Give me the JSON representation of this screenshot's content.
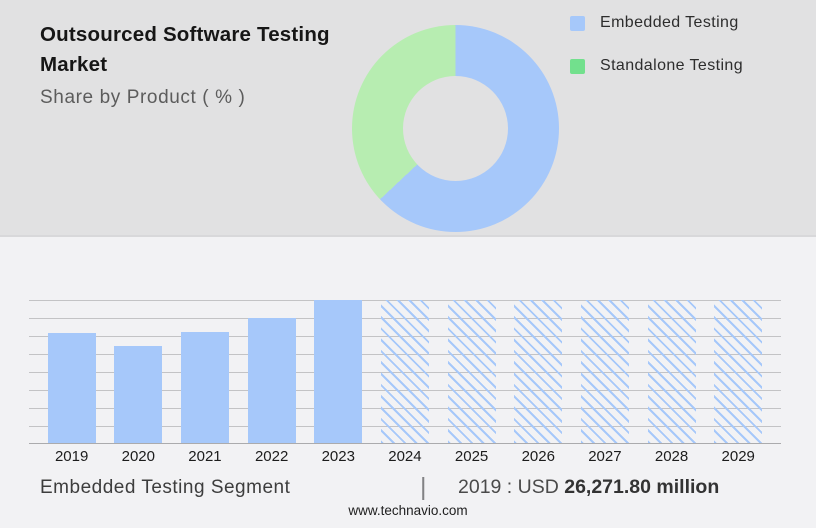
{
  "header": {
    "title": "Outsourced Software Testing Market",
    "subtitle": "Share by Product ( % )"
  },
  "legend": {
    "items": [
      {
        "label": "Embedded Testing",
        "color": "#a6c8fa"
      },
      {
        "label": "Standalone Testing",
        "color": "#72e08d"
      }
    ]
  },
  "chart_data": [
    {
      "type": "pie",
      "subtype": "donut",
      "title": "Share by Product ( % )",
      "labels": [
        "Embedded Testing",
        "Standalone Testing"
      ],
      "values_pct": [
        63,
        37
      ],
      "colors": [
        "#a6c8fa",
        "#b7edb1"
      ],
      "start_angle_deg": 0,
      "direction": "clockwise",
      "legend_position": "top-right",
      "hole_ratio": 0.5
    },
    {
      "type": "bar",
      "categories": [
        "2019",
        "2020",
        "2021",
        "2022",
        "2023",
        "2024",
        "2025",
        "2026",
        "2027",
        "2028",
        "2029"
      ],
      "values_pct_of_max": [
        77,
        68,
        77.5,
        87.5,
        100,
        100,
        100,
        100,
        100,
        100,
        100
      ],
      "bar_styles": [
        "solid",
        "solid",
        "solid",
        "solid",
        "solid",
        "hatched",
        "hatched",
        "hatched",
        "hatched",
        "hatched",
        "hatched"
      ],
      "bar_color": "#a6c8fa",
      "hatched_meaning": "forecast years",
      "gridlines": true,
      "gridline_interval_pct": 12.5,
      "y_axis_labels": false,
      "known_value": {
        "year": "2019",
        "value_usd_million": 26271.8
      },
      "xlabel": "",
      "ylabel": ""
    }
  ],
  "footer": {
    "segment_label": "Embedded Testing Segment",
    "separator": "|",
    "value_prefix": "2019 : USD",
    "value_bold": "26,271.80 million",
    "website": "www.technavio.com"
  },
  "colors": {
    "top_background": "#e1e1e2",
    "bottom_background": "#f2f2f4",
    "bar_blue": "#a6c8fa",
    "donut_green": "#b7edb1",
    "legend_green": "#72e08d",
    "gridline": "#c3c3c5"
  }
}
